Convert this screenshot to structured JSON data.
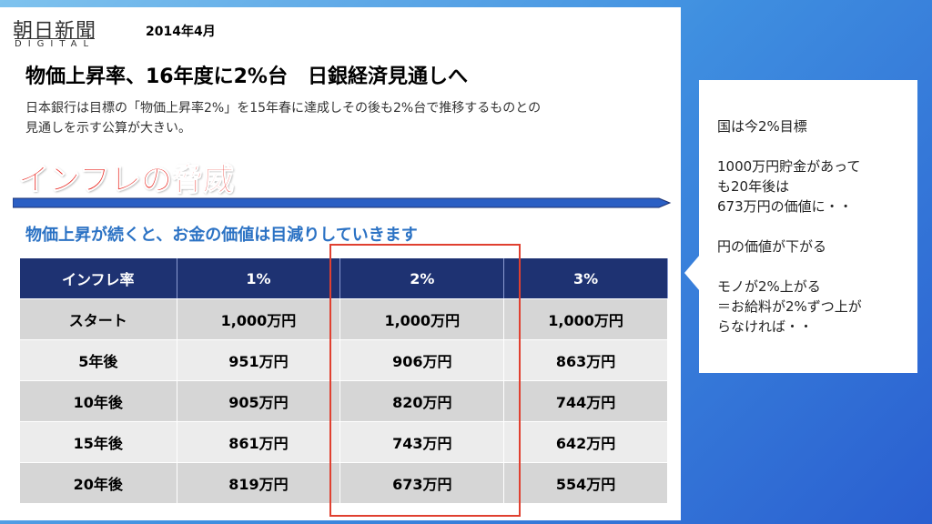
{
  "header": {
    "logo": "朝日新聞",
    "logo_sub": "DIGITAL",
    "date": "2014年4月"
  },
  "headline": "物価上昇率、16年度に2%台　日銀経済見通しへ",
  "lede": [
    "日本銀行は目標の「物価上昇率2%」を15年春に達成しその後も2%台で推移するものとの",
    "見通しを示す公算が大きい。"
  ],
  "banner": "インフレの脅威",
  "subheading": "物価上昇が続くと、お金の価値は目減りしていきます",
  "table": {
    "header": [
      "インフレ率",
      "1%",
      "2%",
      "3%"
    ],
    "rows": [
      [
        "スタート",
        "1,000万円",
        "1,000万円",
        "1,000万円"
      ],
      [
        "5年後",
        "951万円",
        "906万円",
        "863万円"
      ],
      [
        "10年後",
        "905万円",
        "820万円",
        "744万円"
      ],
      [
        "15年後",
        "861万円",
        "743万円",
        "642万円"
      ],
      [
        "20年後",
        "819万円",
        "673万円",
        "554万円"
      ]
    ]
  },
  "note": {
    "paragraphs": [
      [
        "国は今2%目標"
      ],
      [
        "1000万円貯金があって",
        "も20年後は",
        "673万円の価値に・・"
      ],
      [
        "円の価値が下がる"
      ],
      [
        "モノが2%上がる",
        "＝お給料が2%ずつ上が",
        "らなければ・・"
      ]
    ]
  }
}
